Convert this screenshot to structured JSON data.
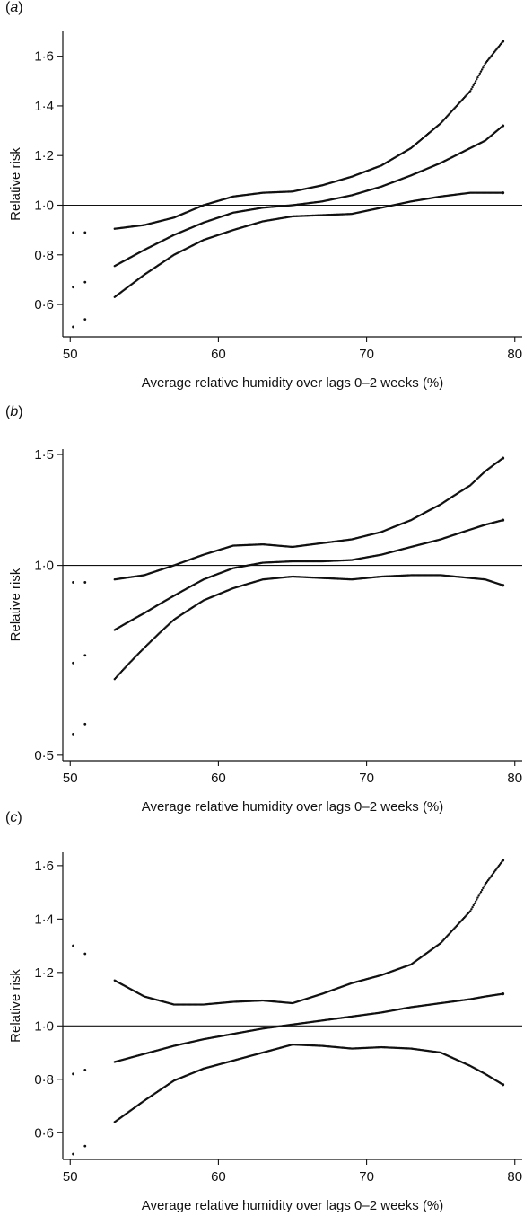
{
  "chart_data": [
    {
      "panel": "a",
      "type": "scatter",
      "xlabel": "Average relative humidity over lags 0–2 weeks (%)",
      "ylabel": "Relative risk",
      "xlim": [
        49.5,
        80.5
      ],
      "ylim": [
        0.47,
        1.7
      ],
      "yscale": "linear",
      "xticks": [
        50,
        60,
        70,
        80
      ],
      "xtick_labels": [
        "50",
        "60",
        "70",
        "80"
      ],
      "yticks": [
        0.6,
        0.8,
        1.0,
        1.2,
        1.4,
        1.6
      ],
      "ytick_labels": [
        "0·6",
        "0·8",
        "1·0",
        "1·2",
        "1·4",
        "1·6"
      ],
      "reference_line": 1.0,
      "series": [
        {
          "role": "upper",
          "points": [
            [
              50.2,
              0.89
            ],
            [
              51,
              0.89
            ],
            [
              53,
              0.905
            ],
            [
              55,
              0.92
            ],
            [
              57,
              0.95
            ],
            [
              59,
              1.0
            ],
            [
              61,
              1.035
            ],
            [
              63,
              1.05
            ],
            [
              65,
              1.055
            ],
            [
              67,
              1.08
            ],
            [
              69,
              1.115
            ],
            [
              71,
              1.16
            ],
            [
              73,
              1.23
            ],
            [
              75,
              1.33
            ],
            [
              77,
              1.46
            ],
            [
              78,
              1.57
            ],
            [
              79.2,
              1.66
            ]
          ]
        },
        {
          "role": "estimate",
          "points": [
            [
              50.2,
              0.67
            ],
            [
              51,
              0.69
            ],
            [
              53,
              0.755
            ],
            [
              55,
              0.82
            ],
            [
              57,
              0.88
            ],
            [
              59,
              0.93
            ],
            [
              61,
              0.97
            ],
            [
              63,
              0.99
            ],
            [
              65,
              1.0
            ],
            [
              67,
              1.015
            ],
            [
              69,
              1.04
            ],
            [
              71,
              1.075
            ],
            [
              73,
              1.12
            ],
            [
              75,
              1.17
            ],
            [
              77,
              1.23
            ],
            [
              78,
              1.26
            ],
            [
              79.2,
              1.32
            ]
          ]
        },
        {
          "role": "lower",
          "points": [
            [
              50.2,
              0.51
            ],
            [
              51,
              0.54
            ],
            [
              53,
              0.63
            ],
            [
              55,
              0.72
            ],
            [
              57,
              0.8
            ],
            [
              59,
              0.86
            ],
            [
              61,
              0.9
            ],
            [
              63,
              0.935
            ],
            [
              65,
              0.955
            ],
            [
              67,
              0.96
            ],
            [
              69,
              0.965
            ],
            [
              71,
              0.99
            ],
            [
              73,
              1.015
            ],
            [
              75,
              1.035
            ],
            [
              77,
              1.05
            ],
            [
              78,
              1.05
            ],
            [
              79.2,
              1.05
            ]
          ]
        }
      ]
    },
    {
      "panel": "b",
      "type": "scatter",
      "xlabel": "Average relative humidity over lags 0–2 weeks (%)",
      "ylabel": "Relative risk",
      "xlim": [
        49.5,
        80.5
      ],
      "ylim": [
        0.49,
        1.53
      ],
      "yscale": "log",
      "xticks": [
        50,
        60,
        70,
        80
      ],
      "xtick_labels": [
        "50",
        "60",
        "70",
        "80"
      ],
      "yticks": [
        0.5,
        1.0,
        1.5
      ],
      "ytick_labels": [
        "0·5",
        "1·0",
        "1·5"
      ],
      "reference_line": 1.0,
      "series": [
        {
          "role": "upper",
          "points": [
            [
              50.2,
              0.94
            ],
            [
              51,
              0.94
            ],
            [
              53,
              0.95
            ],
            [
              55,
              0.965
            ],
            [
              57,
              1.0
            ],
            [
              59,
              1.04
            ],
            [
              61,
              1.075
            ],
            [
              63,
              1.08
            ],
            [
              65,
              1.07
            ],
            [
              67,
              1.085
            ],
            [
              69,
              1.1
            ],
            [
              71,
              1.13
            ],
            [
              73,
              1.18
            ],
            [
              75,
              1.25
            ],
            [
              77,
              1.34
            ],
            [
              78,
              1.41
            ],
            [
              79.2,
              1.48
            ]
          ]
        },
        {
          "role": "estimate",
          "points": [
            [
              50.2,
              0.7
            ],
            [
              51,
              0.72
            ],
            [
              53,
              0.79
            ],
            [
              55,
              0.84
            ],
            [
              57,
              0.895
            ],
            [
              59,
              0.95
            ],
            [
              61,
              0.99
            ],
            [
              63,
              1.01
            ],
            [
              65,
              1.015
            ],
            [
              67,
              1.015
            ],
            [
              69,
              1.02
            ],
            [
              71,
              1.04
            ],
            [
              73,
              1.07
            ],
            [
              75,
              1.1
            ],
            [
              77,
              1.14
            ],
            [
              78,
              1.16
            ],
            [
              79.2,
              1.18
            ]
          ]
        },
        {
          "role": "lower",
          "points": [
            [
              50.2,
              0.54
            ],
            [
              51,
              0.56
            ],
            [
              53,
              0.66
            ],
            [
              55,
              0.74
            ],
            [
              57,
              0.82
            ],
            [
              59,
              0.88
            ],
            [
              61,
              0.92
            ],
            [
              63,
              0.95
            ],
            [
              65,
              0.96
            ],
            [
              67,
              0.955
            ],
            [
              69,
              0.95
            ],
            [
              71,
              0.96
            ],
            [
              73,
              0.965
            ],
            [
              75,
              0.965
            ],
            [
              77,
              0.955
            ],
            [
              78,
              0.95
            ],
            [
              79.2,
              0.93
            ]
          ]
        }
      ]
    },
    {
      "panel": "c",
      "type": "scatter",
      "xlabel": "Average relative humidity over lags 0–2 weeks (%)",
      "ylabel": "Relative risk",
      "xlim": [
        49.5,
        80.5
      ],
      "ylim": [
        0.5,
        1.65
      ],
      "yscale": "linear",
      "xticks": [
        50,
        60,
        70,
        80
      ],
      "xtick_labels": [
        "50",
        "60",
        "70",
        "80"
      ],
      "yticks": [
        0.6,
        0.8,
        1.0,
        1.2,
        1.4,
        1.6
      ],
      "ytick_labels": [
        "0·6",
        "0·8",
        "1·0",
        "1·2",
        "1·4",
        "1·6"
      ],
      "reference_line": 1.0,
      "series": [
        {
          "role": "upper",
          "points": [
            [
              50.2,
              1.3
            ],
            [
              51,
              1.27
            ],
            [
              53,
              1.17
            ],
            [
              55,
              1.11
            ],
            [
              57,
              1.08
            ],
            [
              59,
              1.08
            ],
            [
              61,
              1.09
            ],
            [
              63,
              1.095
            ],
            [
              65,
              1.085
            ],
            [
              67,
              1.12
            ],
            [
              69,
              1.16
            ],
            [
              71,
              1.19
            ],
            [
              73,
              1.23
            ],
            [
              75,
              1.31
            ],
            [
              77,
              1.43
            ],
            [
              78,
              1.53
            ],
            [
              79.2,
              1.62
            ]
          ]
        },
        {
          "role": "estimate",
          "points": [
            [
              50.2,
              0.82
            ],
            [
              51,
              0.835
            ],
            [
              53,
              0.865
            ],
            [
              55,
              0.895
            ],
            [
              57,
              0.925
            ],
            [
              59,
              0.95
            ],
            [
              61,
              0.97
            ],
            [
              63,
              0.99
            ],
            [
              65,
              1.005
            ],
            [
              67,
              1.02
            ],
            [
              69,
              1.035
            ],
            [
              71,
              1.05
            ],
            [
              73,
              1.07
            ],
            [
              75,
              1.085
            ],
            [
              77,
              1.1
            ],
            [
              78,
              1.11
            ],
            [
              79.2,
              1.12
            ]
          ]
        },
        {
          "role": "lower",
          "points": [
            [
              50.2,
              0.52
            ],
            [
              51,
              0.55
            ],
            [
              53,
              0.64
            ],
            [
              55,
              0.72
            ],
            [
              57,
              0.795
            ],
            [
              59,
              0.84
            ],
            [
              61,
              0.87
            ],
            [
              63,
              0.9
            ],
            [
              65,
              0.93
            ],
            [
              67,
              0.925
            ],
            [
              69,
              0.915
            ],
            [
              71,
              0.92
            ],
            [
              73,
              0.915
            ],
            [
              75,
              0.9
            ],
            [
              77,
              0.85
            ],
            [
              78,
              0.82
            ],
            [
              79.2,
              0.78
            ]
          ]
        }
      ]
    }
  ]
}
